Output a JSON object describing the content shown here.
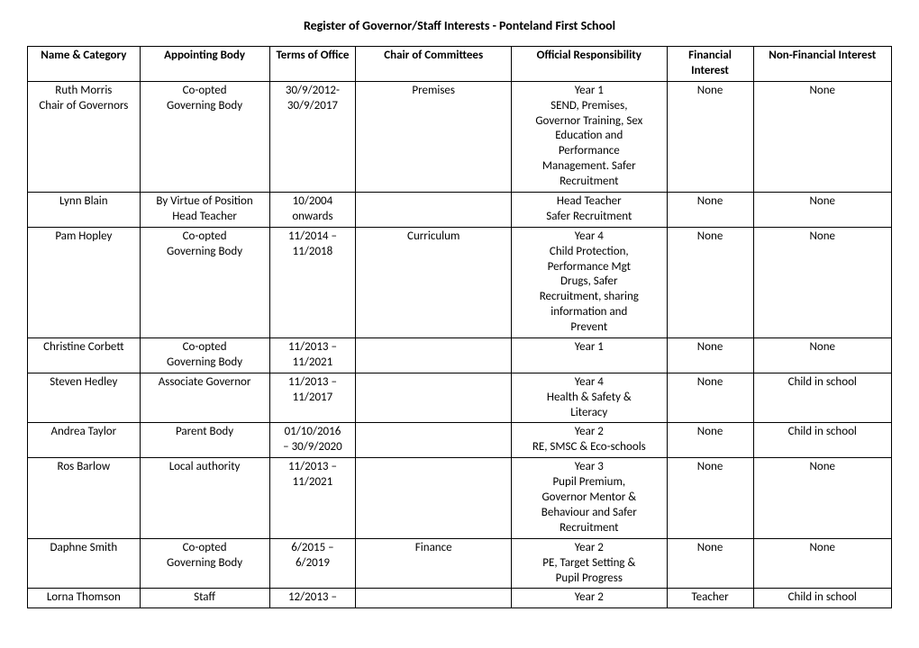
{
  "title": "Register of Governor/Staff Interests - Ponteland First School",
  "columns": [
    "Name & Category",
    "Appointing Body",
    "Terms of Office",
    "Chair of Committees",
    "Official Responsibility",
    "Financial Interest",
    "Non-Financial Interest"
  ],
  "rows": [
    {
      "name": "Ruth Morris\nChair of Governors",
      "appoint": "Co-opted\nGoverning Body",
      "terms": "30/9/2012-\n30/9/2017",
      "chair": "Premises",
      "official": "Year 1\nSEND, Premises,\nGovernor Training, Sex\nEducation and\nPerformance\nManagement. Safer\nRecruitment",
      "financial": "None",
      "nonfin": "None"
    },
    {
      "name": "Lynn Blain",
      "appoint": "By Virtue of Position\nHead Teacher",
      "terms": "10/2004\nonwards",
      "chair": "",
      "official": "Head Teacher\nSafer Recruitment\n ",
      "financial": "None",
      "nonfin": "None"
    },
    {
      "name": "Pam Hopley",
      "appoint": "Co-opted\nGoverning Body",
      "terms": "11/2014 –\n11/2018",
      "chair": "Curriculum",
      "official": "Year 4\nChild Protection,\nPerformance Mgt\nDrugs, Safer\nRecruitment, sharing\ninformation and\nPrevent",
      "financial": "None",
      "nonfin": "None"
    },
    {
      "name": "Christine Corbett",
      "appoint": "Co-opted\nGoverning Body",
      "terms": "11/2013 –\n11/2021",
      "chair": "",
      "official": "Year 1",
      "financial": "None",
      "nonfin": "None"
    },
    {
      "name": "Steven Hedley",
      "appoint": "Associate Governor",
      "terms": "11/2013 –\n11/2017",
      "chair": "",
      "official": "Year 4\nHealth & Safety &\nLiteracy",
      "financial": "None",
      "nonfin": "Child in school"
    },
    {
      "name": "Andrea Taylor",
      "appoint": "Parent Body",
      "terms": "01/10/2016\n– 30/9/2020",
      "chair": "",
      "official": "Year 2\nRE, SMSC & Eco-schools",
      "financial": "None",
      "nonfin": "Child in school"
    },
    {
      "name": "Ros Barlow",
      "appoint": "Local authority",
      "terms": "11/2013 –\n11/2021",
      "chair": "",
      "official": "Year 3\nPupil Premium,\nGovernor Mentor &\nBehaviour and Safer\nRecruitment",
      "financial": "None",
      "nonfin": "None"
    },
    {
      "name": "Daphne Smith",
      "appoint": "Co-opted\nGoverning Body",
      "terms": "6/2015 –\n6/2019",
      "chair": "Finance",
      "official": "Year 2\nPE, Target Setting &\nPupil Progress",
      "financial": "None",
      "nonfin": "None"
    },
    {
      "name": "Lorna Thomson",
      "appoint": "Staff",
      "terms": "12/2013 –",
      "chair": "",
      "official": "Year 2",
      "financial": "Teacher",
      "nonfin": "Child in school"
    }
  ]
}
